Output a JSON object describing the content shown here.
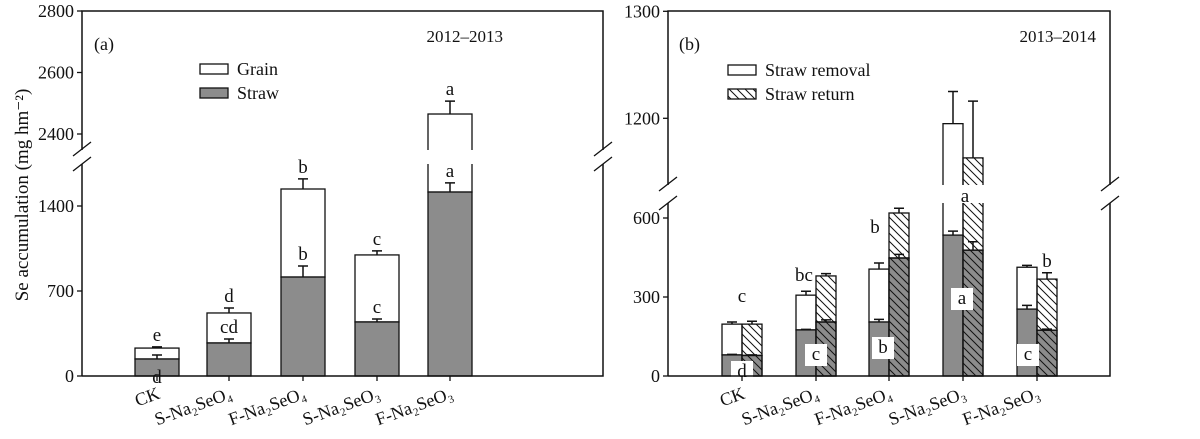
{
  "y_axis_label": "Se accumulation (mg hm⁻²)",
  "colors": {
    "straw": "#8c8c8c",
    "grain": "#ffffff",
    "line": "#111111"
  },
  "chart_data": [
    {
      "type": "bar",
      "stacked": true,
      "panel_label": "(a)",
      "title": "2012–2013",
      "ylabel": "Se accumulation (mg hm⁻²)",
      "y_ticks": [
        0,
        700,
        1400,
        2400,
        2600,
        2800
      ],
      "y_break": [
        1750,
        2348
      ],
      "ylim": [
        0,
        2800
      ],
      "legend": {
        "position": "top-center",
        "entries": [
          "Grain",
          "Straw"
        ]
      },
      "categories": [
        "CK",
        "S-Na₂SeO₄",
        "F-Na₂SeO₄",
        "S-Na₂SeO₃",
        "F-Na₂SeO₃"
      ],
      "series": [
        {
          "name": "Straw",
          "values": [
            140,
            272,
            815,
            445,
            1515
          ],
          "error_top": [
            173,
            305,
            906,
            469,
            1590
          ],
          "letters": [
            "d",
            "cd",
            "b",
            "c",
            "a"
          ]
        },
        {
          "name": "Grain (total)",
          "values": [
            230,
            519,
            1540,
            997,
            2465
          ],
          "error_top": [
            240,
            560,
            1623,
            1030,
            2507
          ],
          "letters": [
            "e",
            "d",
            "b",
            "c",
            "a"
          ]
        }
      ]
    },
    {
      "type": "bar",
      "stacked": true,
      "grouped": true,
      "panel_label": "(b)",
      "title": "2013–2014",
      "ylabel": "Se accumulation (mg hm⁻²)",
      "y_ticks": [
        0,
        300,
        600,
        1200,
        1300
      ],
      "y_break": [
        657,
        1138
      ],
      "ylim": [
        0,
        1300
      ],
      "legend": {
        "position": "top-center",
        "entries": [
          "Straw removal",
          "Straw return"
        ]
      },
      "categories": [
        "CK",
        "S-Na₂SeO₄",
        "F-Na₂SeO₄",
        "S-Na₂SeO₃",
        "F-Na₂SeO₃"
      ],
      "series": [
        {
          "name": "Straw removal",
          "straw": [
            80,
            175,
            205,
            535,
            254
          ],
          "straw_err": [
            82,
            177,
            215,
            550,
            268
          ],
          "total": [
            197,
            307,
            406,
            1195,
            413
          ],
          "total_err": [
            205,
            322,
            429,
            1225,
            420
          ]
        },
        {
          "name": "Straw return",
          "straw": [
            78,
            205,
            448,
            478,
            174
          ],
          "straw_err": [
            80,
            213,
            462,
            510,
            178
          ],
          "total": [
            197,
            380,
            619,
            1163,
            368
          ],
          "total_err": [
            208,
            389,
            637,
            1216,
            392
          ]
        }
      ],
      "total_letters": [
        "c",
        "bc",
        "b",
        "a",
        "b"
      ],
      "straw_letters": [
        "d",
        "c",
        "b",
        "a",
        "c"
      ]
    }
  ]
}
